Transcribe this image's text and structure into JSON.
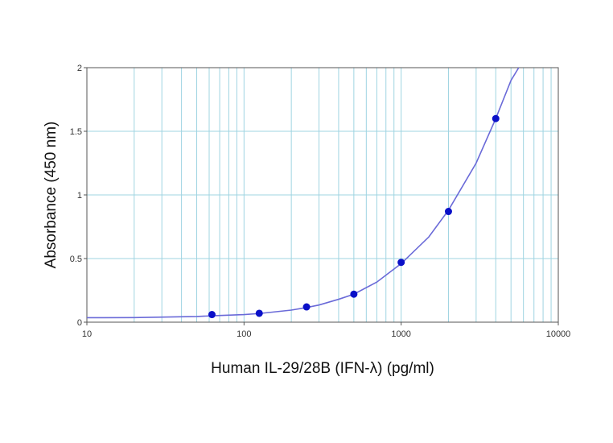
{
  "chart_data": {
    "type": "scatter",
    "xlabel": "Human IL-29/28B (IFN-λ) (pg/ml)",
    "ylabel": "Absorbance (450 nm)",
    "x_scale": "log",
    "xlim": [
      10,
      10000
    ],
    "ylim": [
      0,
      2
    ],
    "x_ticks": [
      {
        "value": 10,
        "label": "10"
      },
      {
        "value": 100,
        "label": "100"
      },
      {
        "value": 1000,
        "label": "1000"
      },
      {
        "value": 10000,
        "label": "10000"
      }
    ],
    "y_ticks": [
      {
        "value": 0,
        "label": "0"
      },
      {
        "value": 0.5,
        "label": "0.5"
      },
      {
        "value": 1,
        "label": "1"
      },
      {
        "value": 1.5,
        "label": "1.5"
      },
      {
        "value": 2,
        "label": "2"
      }
    ],
    "grid": true,
    "points": {
      "x": [
        62.5,
        125,
        250,
        500,
        1000,
        2000,
        4000
      ],
      "y": [
        0.06,
        0.07,
        0.12,
        0.22,
        0.47,
        0.87,
        1.6
      ]
    },
    "fit_curve": {
      "x": [
        10,
        20,
        50,
        62.5,
        100,
        125,
        200,
        250,
        300,
        400,
        500,
        700,
        1000,
        1500,
        2000,
        3000,
        4000,
        5000,
        5600
      ],
      "y": [
        0.035,
        0.036,
        0.045,
        0.05,
        0.06,
        0.068,
        0.095,
        0.115,
        0.135,
        0.18,
        0.22,
        0.315,
        0.46,
        0.67,
        0.88,
        1.25,
        1.6,
        1.9,
        2.0
      ]
    },
    "colors": {
      "point": "#0a10c8",
      "curve": "#6a6ad8",
      "grid": "#9fd4e2",
      "frame": "#555555"
    }
  }
}
